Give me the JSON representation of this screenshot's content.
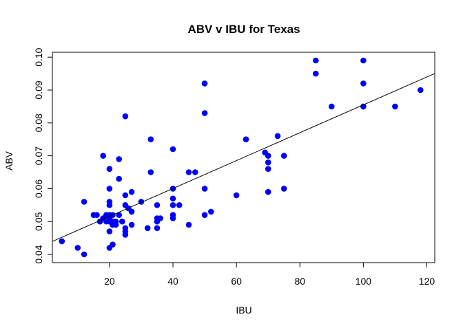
{
  "chart_data": {
    "type": "scatter",
    "title": "ABV v IBU for Texas",
    "xlabel": "IBU",
    "ylabel": "ABV",
    "xlim": [
      2,
      122.5
    ],
    "ylim": [
      0.0375,
      0.1015
    ],
    "xticks": [
      20,
      40,
      60,
      80,
      100,
      120
    ],
    "yticks": [
      0.04,
      0.05,
      0.06,
      0.07,
      0.08,
      0.09,
      0.1
    ],
    "xtick_labels": [
      "20",
      "40",
      "60",
      "80",
      "100",
      "120"
    ],
    "ytick_labels": [
      "0.04",
      "0.05",
      "0.06",
      "0.07",
      "0.08",
      "0.09",
      "0.10"
    ],
    "grid": false,
    "point_color": "#0000ff",
    "regression_line": {
      "intercept": 0.0431,
      "slope": 0.000424,
      "color": "#000000"
    },
    "points": [
      [
        5,
        0.044
      ],
      [
        10,
        0.042
      ],
      [
        12,
        0.04
      ],
      [
        12,
        0.056
      ],
      [
        15,
        0.052
      ],
      [
        16,
        0.052
      ],
      [
        17,
        0.05
      ],
      [
        18,
        0.07
      ],
      [
        18,
        0.051
      ],
      [
        19,
        0.05
      ],
      [
        19,
        0.052
      ],
      [
        20,
        0.066
      ],
      [
        20,
        0.06
      ],
      [
        20,
        0.056
      ],
      [
        20,
        0.055
      ],
      [
        20,
        0.052
      ],
      [
        20,
        0.051
      ],
      [
        20,
        0.05
      ],
      [
        20,
        0.047
      ],
      [
        20,
        0.042
      ],
      [
        21,
        0.043
      ],
      [
        21,
        0.052
      ],
      [
        21,
        0.05
      ],
      [
        21,
        0.049
      ],
      [
        22,
        0.05
      ],
      [
        22,
        0.049
      ],
      [
        23,
        0.069
      ],
      [
        23,
        0.063
      ],
      [
        23,
        0.052
      ],
      [
        24,
        0.05
      ],
      [
        25,
        0.082
      ],
      [
        25,
        0.058
      ],
      [
        25,
        0.055
      ],
      [
        25,
        0.048
      ],
      [
        25,
        0.047
      ],
      [
        25,
        0.046
      ],
      [
        26,
        0.054
      ],
      [
        27,
        0.059
      ],
      [
        27,
        0.053
      ],
      [
        27,
        0.049
      ],
      [
        30,
        0.056
      ],
      [
        32,
        0.048
      ],
      [
        33,
        0.075
      ],
      [
        33,
        0.065
      ],
      [
        35,
        0.055
      ],
      [
        35,
        0.051
      ],
      [
        35,
        0.05
      ],
      [
        35,
        0.048
      ],
      [
        36,
        0.051
      ],
      [
        40,
        0.072
      ],
      [
        40,
        0.06
      ],
      [
        40,
        0.057
      ],
      [
        40,
        0.055
      ],
      [
        40,
        0.052
      ],
      [
        40,
        0.051
      ],
      [
        42,
        0.055
      ],
      [
        45,
        0.065
      ],
      [
        45,
        0.049
      ],
      [
        47,
        0.065
      ],
      [
        50,
        0.092
      ],
      [
        50,
        0.083
      ],
      [
        50,
        0.06
      ],
      [
        50,
        0.052
      ],
      [
        52,
        0.053
      ],
      [
        60,
        0.058
      ],
      [
        63,
        0.075
      ],
      [
        69,
        0.071
      ],
      [
        70,
        0.07
      ],
      [
        70,
        0.068
      ],
      [
        70,
        0.066
      ],
      [
        70,
        0.059
      ],
      [
        73,
        0.076
      ],
      [
        75,
        0.07
      ],
      [
        75,
        0.06
      ],
      [
        85,
        0.099
      ],
      [
        85,
        0.095
      ],
      [
        90,
        0.085
      ],
      [
        100,
        0.099
      ],
      [
        100,
        0.092
      ],
      [
        100,
        0.085
      ],
      [
        110,
        0.085
      ],
      [
        118,
        0.09
      ]
    ]
  }
}
